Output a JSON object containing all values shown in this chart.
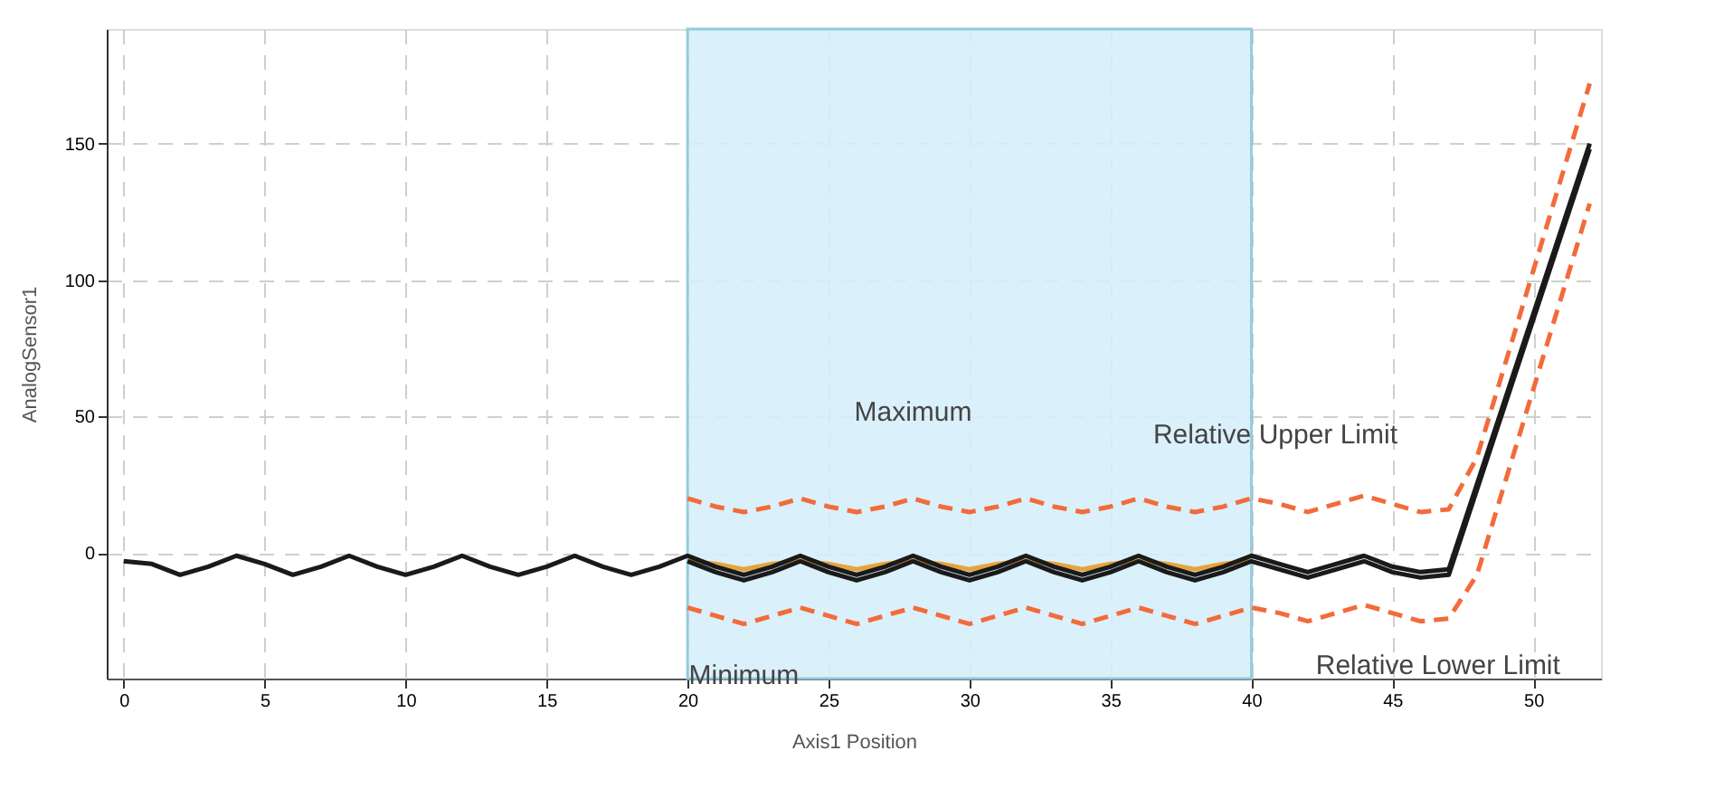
{
  "chart_data": {
    "type": "line",
    "xlabel": "Axis1 Position",
    "ylabel": "AnalogSensor1",
    "xlim": [
      -0.6,
      52.4
    ],
    "ylim": [
      -46,
      192
    ],
    "xticks": [
      0,
      5,
      10,
      15,
      20,
      25,
      30,
      35,
      40,
      45,
      50
    ],
    "yticks": [
      0,
      50,
      100,
      150
    ],
    "grid": true,
    "bands": [
      {
        "axis": "x",
        "from": 20,
        "to": 40,
        "color": "#d6effa"
      }
    ],
    "annotations": [
      {
        "text": "Maximum",
        "x": 28,
        "y": 20
      },
      {
        "text": "Minimum",
        "x": 22,
        "y": -26
      },
      {
        "text": "Relative Upper Limit",
        "x": 37,
        "y": 17
      },
      {
        "text": "Relative Lower Limit",
        "x": 42,
        "y": -25
      }
    ],
    "series": [
      {
        "color": "#e8a33c",
        "line_style": "solid",
        "x": [
          20,
          21,
          22,
          23,
          24,
          25,
          26,
          27,
          28,
          29,
          30,
          31,
          32,
          33,
          34,
          35,
          36,
          37,
          38,
          39,
          40
        ],
        "values": [
          -3,
          -4,
          -6,
          -4,
          -3,
          -4,
          -6,
          -4,
          -3,
          -4,
          -6,
          -4,
          -3,
          -4,
          -6,
          -4,
          -3,
          -4,
          -6,
          -4,
          -3
        ]
      },
      {
        "color": "#1a1a1a",
        "line_style": "solid",
        "x": [
          20,
          21,
          22,
          23,
          24,
          25,
          26,
          27,
          28,
          29,
          30,
          31,
          32,
          33,
          34,
          35,
          36,
          37,
          38,
          39,
          40,
          41,
          42,
          43,
          44,
          45,
          46,
          47,
          52
        ],
        "values": [
          -3,
          -7,
          -10,
          -7,
          -3,
          -7,
          -10,
          -7,
          -3,
          -7,
          -10,
          -7,
          -3,
          -7,
          -10,
          -7,
          -3,
          -7,
          -10,
          -7,
          -3,
          -6,
          -9,
          -6,
          -3,
          -7,
          -9,
          -8,
          148
        ]
      },
      {
        "color": "#1a1a1a",
        "line_style": "solid",
        "x": [
          0,
          1,
          2,
          3,
          4,
          5,
          6,
          7,
          8,
          9,
          10,
          11,
          12,
          13,
          14,
          15,
          16,
          17,
          18,
          19,
          20,
          21,
          22,
          23,
          24,
          25,
          26,
          27,
          28,
          29,
          30,
          31,
          32,
          33,
          34,
          35,
          36,
          37,
          38,
          39,
          40,
          41,
          42,
          43,
          44,
          45,
          46,
          47,
          52
        ],
        "values": [
          -3,
          -4,
          -8,
          -5,
          -1,
          -4,
          -8,
          -5,
          -1,
          -5,
          -8,
          -5,
          -1,
          -5,
          -8,
          -5,
          -1,
          -5,
          -8,
          -5,
          -1,
          -5,
          -8,
          -5,
          -1,
          -5,
          -8,
          -5,
          -1,
          -5,
          -8,
          -5,
          -1,
          -5,
          -8,
          -5,
          -1,
          -5,
          -8,
          -5,
          -1,
          -4,
          -7,
          -4,
          -1,
          -5,
          -7,
          -6,
          150
        ]
      },
      {
        "color": "#f26b3a",
        "line_style": "dashed",
        "x": [
          20,
          21,
          22,
          23,
          24,
          25,
          26,
          27,
          28,
          29,
          30,
          31,
          32,
          33,
          34,
          35,
          36,
          37,
          38,
          39,
          40,
          41,
          42,
          43,
          44,
          45,
          46,
          47,
          48,
          52
        ],
        "values": [
          20,
          17,
          15,
          17,
          20,
          17,
          15,
          17,
          20,
          17,
          15,
          17,
          20,
          17,
          15,
          17,
          20,
          17,
          15,
          17,
          20,
          18,
          15,
          18,
          21,
          18,
          15,
          16,
          35,
          172
        ]
      },
      {
        "color": "#f26b3a",
        "line_style": "dashed",
        "x": [
          20,
          21,
          22,
          23,
          24,
          25,
          26,
          27,
          28,
          29,
          30,
          31,
          32,
          33,
          34,
          35,
          36,
          37,
          38,
          39,
          40,
          41,
          42,
          43,
          44,
          45,
          46,
          47,
          48,
          52
        ],
        "values": [
          -20,
          -23,
          -26,
          -23,
          -20,
          -23,
          -26,
          -23,
          -20,
          -23,
          -26,
          -23,
          -20,
          -23,
          -26,
          -23,
          -20,
          -23,
          -26,
          -23,
          -20,
          -22,
          -25,
          -22,
          -19,
          -22,
          -25,
          -24,
          -8,
          128
        ]
      }
    ]
  }
}
